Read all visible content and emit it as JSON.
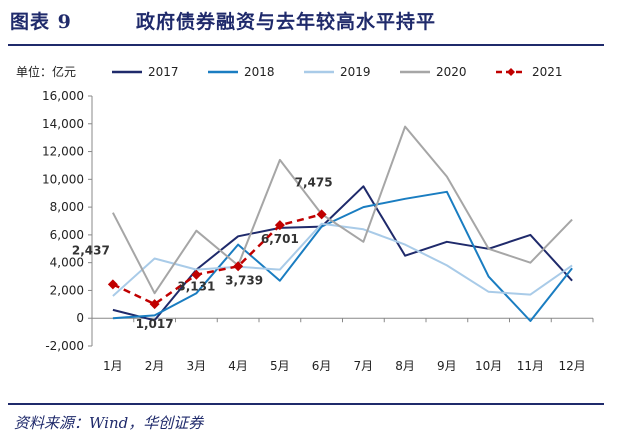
{
  "header": {
    "figure_number": "图表 9",
    "title": "政府债券融资与去年较高水平持平"
  },
  "source": "资料来源：Wind，华创证券",
  "chart_data": {
    "type": "line",
    "unit_label": "单位：亿元",
    "categories": [
      "1月",
      "2月",
      "3月",
      "4月",
      "5月",
      "6月",
      "7月",
      "8月",
      "9月",
      "10月",
      "11月",
      "12月"
    ],
    "ylim": [
      -2000,
      16000
    ],
    "yticks": [
      -2000,
      0,
      2000,
      4000,
      6000,
      8000,
      10000,
      12000,
      14000,
      16000
    ],
    "ytick_labels": [
      "-2,000",
      "0",
      "2,000",
      "4,000",
      "6,000",
      "8,000",
      "10,000",
      "12,000",
      "14,000",
      "16,000"
    ],
    "grid": false,
    "legend_position": "top",
    "series": [
      {
        "name": "2017",
        "color": "#1f2a6b",
        "dash": "solid",
        "marker": "none",
        "values": [
          600,
          -150,
          3500,
          5900,
          6500,
          6600,
          9500,
          4500,
          5500,
          5000,
          6000,
          2700
        ]
      },
      {
        "name": "2018",
        "color": "#1a7dc1",
        "dash": "solid",
        "marker": "none",
        "values": [
          0,
          200,
          1800,
          5300,
          2700,
          6600,
          8000,
          8600,
          9100,
          3000,
          -200,
          3600
        ]
      },
      {
        "name": "2019",
        "color": "#a9cbe8",
        "dash": "solid",
        "marker": "none",
        "values": [
          1600,
          4300,
          3500,
          3700,
          3500,
          6800,
          6400,
          5300,
          3800,
          1900,
          1700,
          3800
        ]
      },
      {
        "name": "2020",
        "color": "#a6a6a6",
        "dash": "solid",
        "marker": "none",
        "values": [
          7600,
          1800,
          6300,
          3800,
          11400,
          7500,
          5500,
          13800,
          10200,
          5000,
          4000,
          7100
        ]
      },
      {
        "name": "2021",
        "color": "#c00000",
        "dash": "dashed",
        "marker": "diamond",
        "values": [
          2437,
          1017,
          3131,
          3739,
          6701,
          7475,
          null,
          null,
          null,
          null,
          null,
          null
        ]
      }
    ],
    "data_labels": [
      {
        "series": "2021",
        "index": 0,
        "text": "2,437"
      },
      {
        "series": "2021",
        "index": 1,
        "text": "1,017"
      },
      {
        "series": "2021",
        "index": 2,
        "text": "3,131"
      },
      {
        "series": "2021",
        "index": 3,
        "text": "3,739"
      },
      {
        "series": "2021",
        "index": 4,
        "text": "6,701"
      },
      {
        "series": "2021",
        "index": 5,
        "text": "7,475"
      }
    ]
  }
}
